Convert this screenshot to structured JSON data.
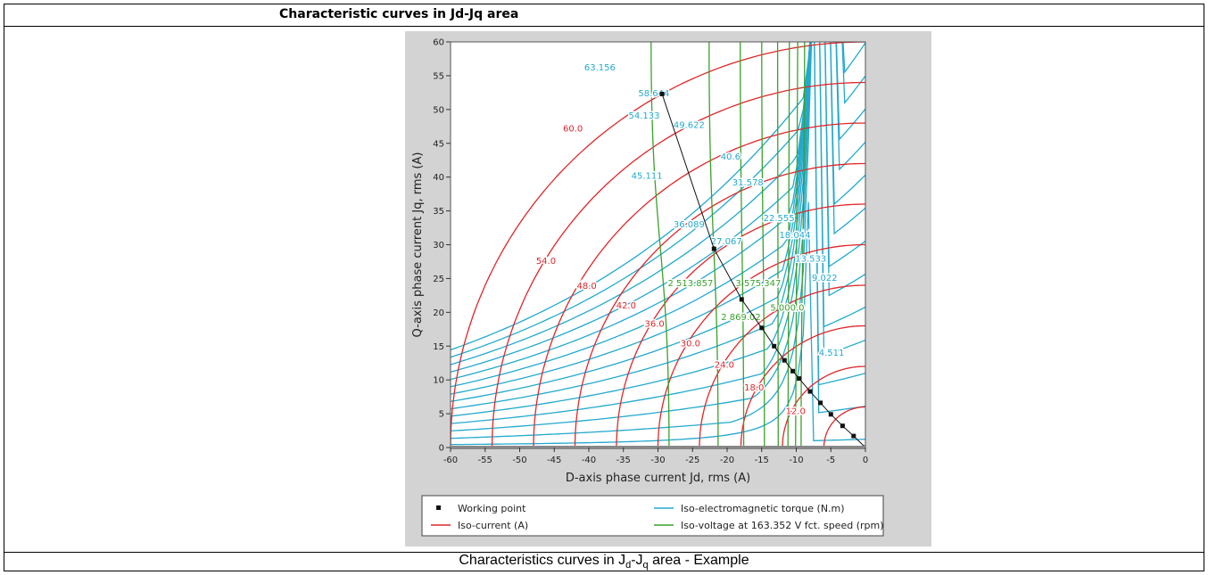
{
  "page": {
    "heading": "Characteristic curves in Jd-Jq area",
    "caption_prefix": "Characteristics curves in J",
    "caption_sub_d": "d",
    "caption_mid": "-J",
    "caption_sub_q": "q",
    "caption_suffix": " area - Example"
  },
  "chart_data": {
    "type": "line",
    "title": "",
    "xlabel": "D-axis phase current Jd, rms (A)",
    "ylabel": "Q-axis phase current Jq, rms (A)",
    "xlim": [
      -60,
      0
    ],
    "ylim": [
      0,
      60
    ],
    "xticks": [
      -60,
      -55,
      -50,
      -45,
      -40,
      -35,
      -30,
      -25,
      -20,
      -15,
      -10,
      -5,
      0
    ],
    "yticks": [
      0,
      5,
      10,
      15,
      20,
      25,
      30,
      35,
      40,
      45,
      50,
      55,
      60
    ],
    "grid": false,
    "legend_position": "bottom",
    "colors": {
      "working_point": "#111111",
      "iso_current": "#e0262a",
      "iso_torque": "#23a9cf",
      "iso_voltage": "#3aa12c",
      "plot_frame": "#d3d3d3"
    },
    "legend": [
      {
        "key": "working_point",
        "label": "Working point"
      },
      {
        "key": "iso_torque",
        "label": "Iso-electromagnetic torque (N.m)"
      },
      {
        "key": "iso_current",
        "label": "Iso-current (A)"
      },
      {
        "key": "iso_voltage",
        "label": "Iso-voltage at 163.352 V fct. speed (rpm)"
      }
    ],
    "working_points": {
      "x": [
        -29.4,
        -21.9,
        -17.9,
        -15.0,
        -13.2,
        -11.7,
        -10.5,
        -9.6,
        -8.0,
        -6.5,
        -5.0,
        -3.3,
        -1.7,
        0
      ],
      "y": [
        52.3,
        29.4,
        21.9,
        17.7,
        15.0,
        12.9,
        11.3,
        10.2,
        8.3,
        6.6,
        4.9,
        3.2,
        1.7,
        0
      ]
    },
    "iso_current": {
      "radii": [
        6,
        12,
        18,
        24,
        30,
        36,
        42,
        48,
        54,
        60
      ],
      "labels": [
        {
          "text": "60.0",
          "x": -42.3,
          "y": 47.3
        },
        {
          "text": "54.0",
          "x": -46.2,
          "y": 27.7
        },
        {
          "text": "48.0",
          "x": -40.3,
          "y": 24.0
        },
        {
          "text": "42.0",
          "x": -34.6,
          "y": 21.1
        },
        {
          "text": "36.0",
          "x": -30.5,
          "y": 18.4
        },
        {
          "text": "30.0",
          "x": -25.3,
          "y": 15.5
        },
        {
          "text": "24.0",
          "x": -20.4,
          "y": 12.3
        },
        {
          "text": "18.0",
          "x": -16.1,
          "y": 9.0
        },
        {
          "text": "12.0",
          "x": -10.1,
          "y": 5.5
        }
      ]
    },
    "iso_torque": {
      "center_x": -9.0,
      "levels": [
        {
          "a": 23.0,
          "y_far": 1.0,
          "label": "4.511",
          "lx": -4.9,
          "ly": 14.1
        },
        {
          "a": 46.0,
          "y_far": 5.0,
          "label": "9.022",
          "lx": -5.9,
          "ly": 25.2
        },
        {
          "a": 69.0,
          "y_far": 9.0,
          "label": "13.533",
          "lx": -7.9,
          "ly": 28.0
        },
        {
          "a": 92.0,
          "y_far": 13.0,
          "label": "18.044",
          "lx": -10.2,
          "ly": 31.5
        },
        {
          "a": 115.0,
          "y_far": 17.0,
          "label": "22.555",
          "lx": -12.5,
          "ly": 34.0
        },
        {
          "a": 138.0,
          "y_far": 21.0,
          "label": "27.067",
          "lx": -20.1,
          "ly": 30.6
        },
        {
          "a": 161.0,
          "y_far": 25.0,
          "label": "31.578",
          "lx": -17.0,
          "ly": 39.3
        },
        {
          "a": 184.0,
          "y_far": 29.0,
          "label": "36.089",
          "lx": -25.5,
          "ly": 33.1
        },
        {
          "a": 207.0,
          "y_far": 33.0,
          "label": "40.6",
          "lx": -19.5,
          "ly": 43.1
        },
        {
          "a": 230.0,
          "y_far": 37.0,
          "label": "45.111",
          "lx": -31.6,
          "ly": 40.3
        },
        {
          "a": 253.0,
          "y_far": 41.0,
          "label": "49.622",
          "lx": -25.5,
          "ly": 47.8
        },
        {
          "a": 276.0,
          "y_far": 45.0,
          "label": "54.133",
          "lx": -32.0,
          "ly": 49.2
        },
        {
          "a": 299.0,
          "y_far": 49.0,
          "label": "58.644",
          "lx": -30.6,
          "ly": 52.5
        },
        {
          "a": 322.0,
          "y_far": 53.0,
          "label": "63.156",
          "lx": -38.4,
          "ly": 56.3
        }
      ]
    },
    "iso_voltage": {
      "lines": [
        {
          "x_bottom": -28.4,
          "x_top": -31.0
        },
        {
          "x_bottom": -21.3,
          "x_top": -22.6
        },
        {
          "x_bottom": -17.6,
          "x_top": -18.1
        },
        {
          "x_bottom": -14.6,
          "x_top": -15.0
        },
        {
          "x_bottom": -12.6,
          "x_top": -12.7
        },
        {
          "x_bottom": -11.2,
          "x_top": -11.0
        },
        {
          "x_bottom": -10.1,
          "x_top": -9.8
        },
        {
          "x_bottom": -9.3,
          "x_top": -8.8
        }
      ],
      "labels": [
        {
          "text": "2 513.857",
          "x": -25.3,
          "y": 24.4
        },
        {
          "text": "3 575.347",
          "x": -15.5,
          "y": 24.4
        },
        {
          "text": "2 869.02",
          "x": -18.0,
          "y": 19.4
        },
        {
          "text": "5 000.0",
          "x": -11.3,
          "y": 20.8
        }
      ]
    }
  }
}
